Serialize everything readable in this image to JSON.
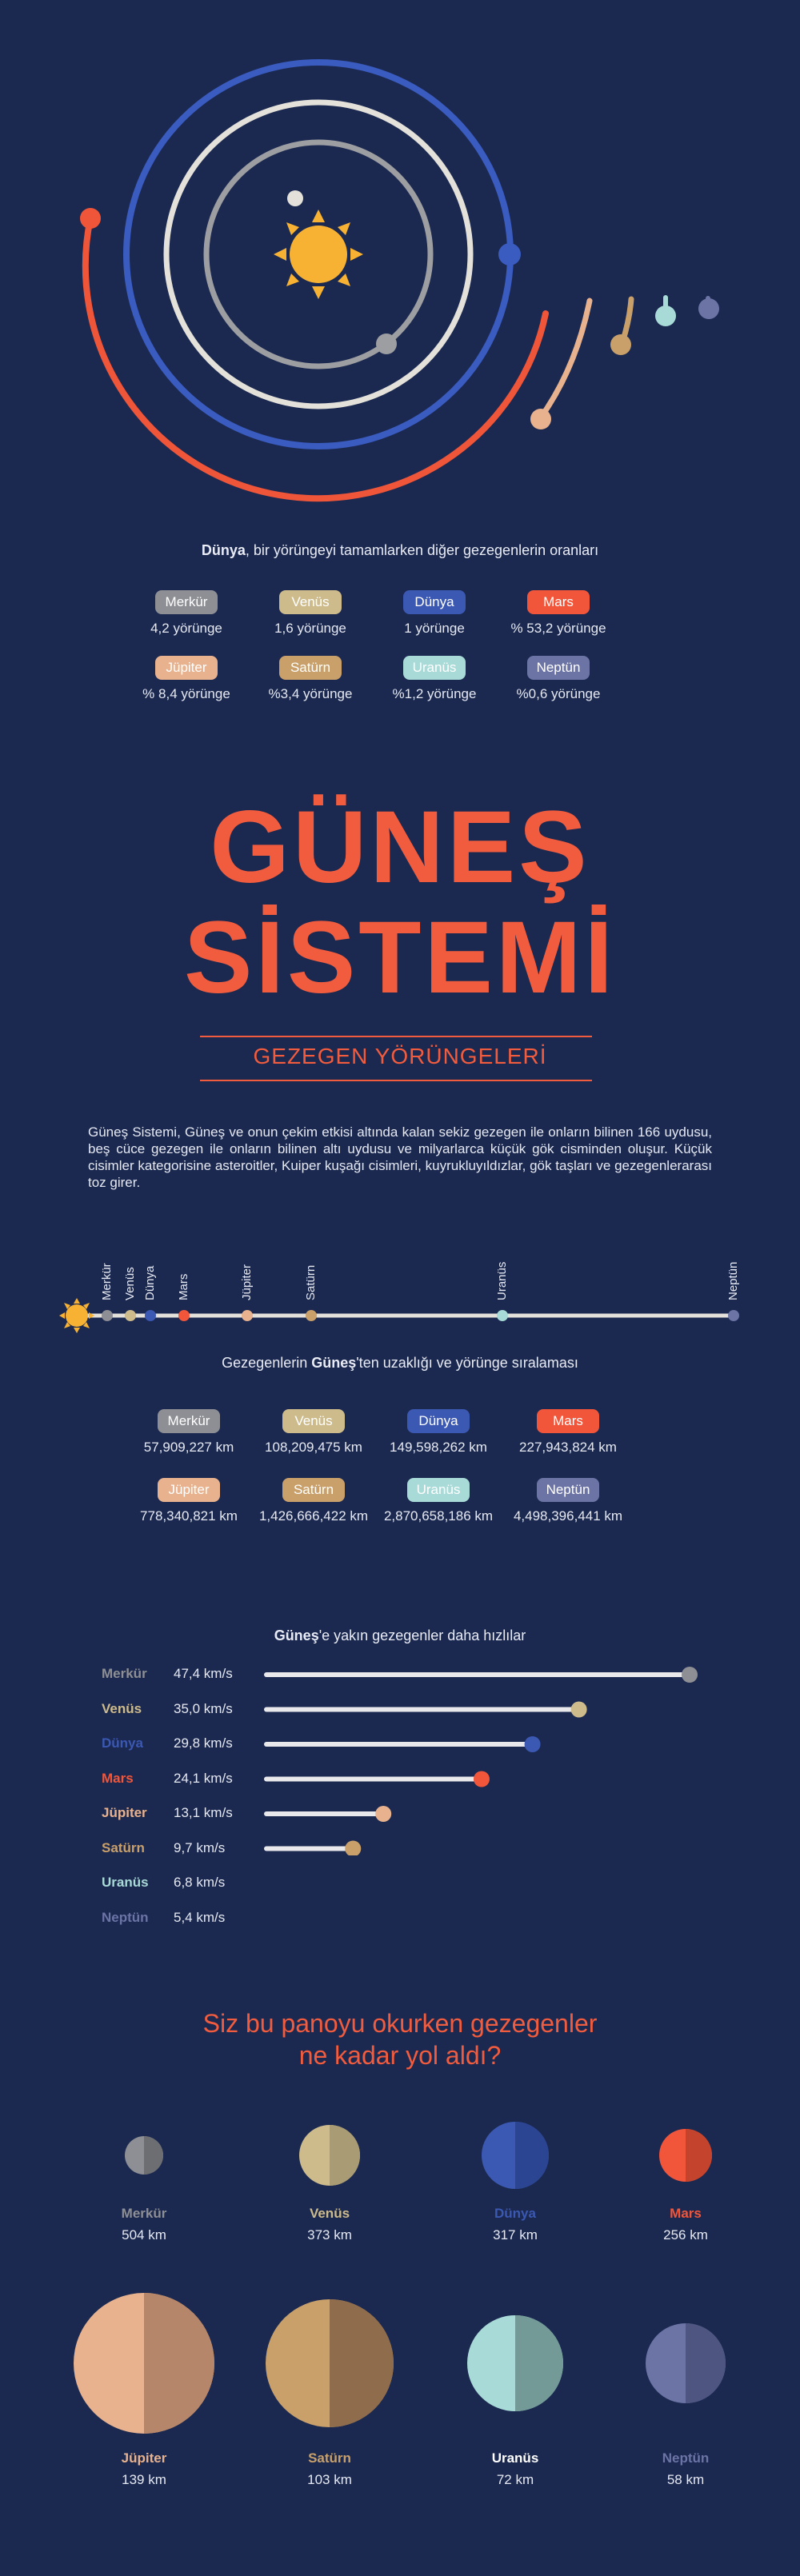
{
  "ratio": {
    "caption_bold": "Dünya",
    "caption_rest": ", bir yörüngeyi tamamlarken diğer gezegenlerin oranları",
    "items": [
      {
        "name": "Merkür",
        "value": "4,2 yörünge",
        "color": "#8e8f94"
      },
      {
        "name": "Venüs",
        "value": "1,6 yörünge",
        "color": "#cdbb8c"
      },
      {
        "name": "Dünya",
        "value": "1 yörünge",
        "color": "#3b58b2"
      },
      {
        "name": "Mars",
        "value": "% 53,2 yörünge",
        "color": "#f1563a"
      },
      {
        "name": "Jüpiter",
        "value": "% 8,4 yörünge",
        "color": "#e8b28e"
      },
      {
        "name": "Satürn",
        "value": "%3,4 yörünge",
        "color": "#c9a06a"
      },
      {
        "name": "Uranüs",
        "value": "%1,2 yörünge",
        "color": "#a8dad7"
      },
      {
        "name": "Neptün",
        "value": "%0,6 yörünge",
        "color": "#6c74a6"
      }
    ]
  },
  "title": {
    "line1": "GÜNEŞ",
    "line2": "SİSTEMİ",
    "subtitle": "GEZEGEN YÖRÜNGELERİ"
  },
  "intro": "Güneş Sistemi, Güneş ve onun çekim etkisi altında kalan sekiz gezegen ile onların bilinen 166 uydusu, beş cüce gezegen ile onların bilinen altı uydusu ve milyarlarca küçük gök cisminden oluşur. Küçük cisimler kategorisine asteroitler, Kuiper kuşağı cisimleri, kuyrukluyıldızlar, gök taşları ve gezegenlerarası toz girer.",
  "timeline": {
    "labels": [
      "Merkür",
      "Venüs",
      "Dünya",
      "Mars",
      "Jüpiter",
      "Satürn",
      "Uranüs",
      "Neptün"
    ]
  },
  "distance": {
    "caption_pre": "Gezegenlerin ",
    "caption_bold": "Güneş",
    "caption_post": "'ten uzaklığı ve yörünge sıralaması",
    "items": [
      {
        "name": "Merkür",
        "value": "57,909,227 km"
      },
      {
        "name": "Venüs",
        "value": "108,209,475 km"
      },
      {
        "name": "Dünya",
        "value": "149,598,262 km"
      },
      {
        "name": "Mars",
        "value": "227,943,824 km"
      },
      {
        "name": "Jüpiter",
        "value": "778,340,821 km"
      },
      {
        "name": "Satürn",
        "value": "1,426,666,422 km"
      },
      {
        "name": "Uranüs",
        "value": "2,870,658,186 km"
      },
      {
        "name": "Neptün",
        "value": "4,498,396,441 km"
      }
    ]
  },
  "speed": {
    "caption_bold": "Güneş",
    "caption_rest": "'e yakın gezegenler daha hızlılar",
    "items": [
      {
        "name": "Merkür",
        "value": "47,4 km/s",
        "speed": 47.4,
        "color": "#8e8f94"
      },
      {
        "name": "Venüs",
        "value": "35,0 km/s",
        "speed": 35.0,
        "color": "#cdbb8c"
      },
      {
        "name": "Dünya",
        "value": "29,8 km/s",
        "speed": 29.8,
        "color": "#3b58b2"
      },
      {
        "name": "Mars",
        "value": "24,1 km/s",
        "speed": 24.1,
        "color": "#f1563a"
      },
      {
        "name": "Jüpiter",
        "value": "13,1 km/s",
        "speed": 13.1,
        "color": "#e8b28e"
      },
      {
        "name": "Satürn",
        "value": "9,7 km/s",
        "speed": 9.7,
        "color": "#c9a06a"
      },
      {
        "name": "Uranüs",
        "value": "6,8 km/s",
        "speed": 6.8,
        "color": "#a8dad7"
      },
      {
        "name": "Neptün",
        "value": "5,4 km/s",
        "speed": 5.4,
        "color": "#6c74a6"
      }
    ]
  },
  "travel": {
    "heading1": "Siz bu panoyu okurken gezegenler",
    "heading2": "ne kadar yol aldı?",
    "items": [
      {
        "name": "Merkür",
        "km": "504 km",
        "color": "#8e8f94"
      },
      {
        "name": "Venüs",
        "km": "373 km",
        "color": "#cdbb8c"
      },
      {
        "name": "Dünya",
        "km": "317 km",
        "color": "#3b58b2"
      },
      {
        "name": "Mars",
        "km": "256 km",
        "color": "#f1563a"
      },
      {
        "name": "Jüpiter",
        "km": "139 km",
        "color": "#e8b28e"
      },
      {
        "name": "Satürn",
        "km": "103 km",
        "color": "#c9a06a"
      },
      {
        "name": "Uranüs",
        "km": "72 km",
        "color": "#a8dad7"
      },
      {
        "name": "Neptün",
        "km": "58 km",
        "color": "#6c74a6"
      }
    ]
  }
}
